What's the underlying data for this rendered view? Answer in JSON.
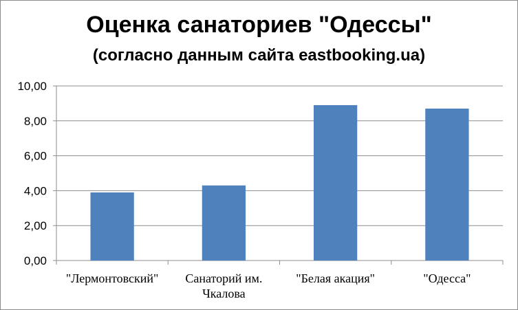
{
  "chart_data": {
    "type": "bar",
    "title": "Оценка санаториев \"Одессы\"",
    "subtitle": "(согласно данным сайта eastbooking.ua)",
    "categories": [
      [
        "\"Лермонтовский\""
      ],
      [
        "Санаторий им.",
        "Чкалова"
      ],
      [
        "\"Белая акация\""
      ],
      [
        "\"Одесса\""
      ]
    ],
    "values": [
      3.9,
      4.3,
      8.9,
      8.7
    ],
    "ylim": [
      0,
      10
    ],
    "yticks": [
      "0,00",
      "2,00",
      "4,00",
      "6,00",
      "8,00",
      "10,00"
    ],
    "grid": true,
    "legend": "none",
    "bar_color": "#4f81bd",
    "grid_color": "#8c8c8c"
  }
}
